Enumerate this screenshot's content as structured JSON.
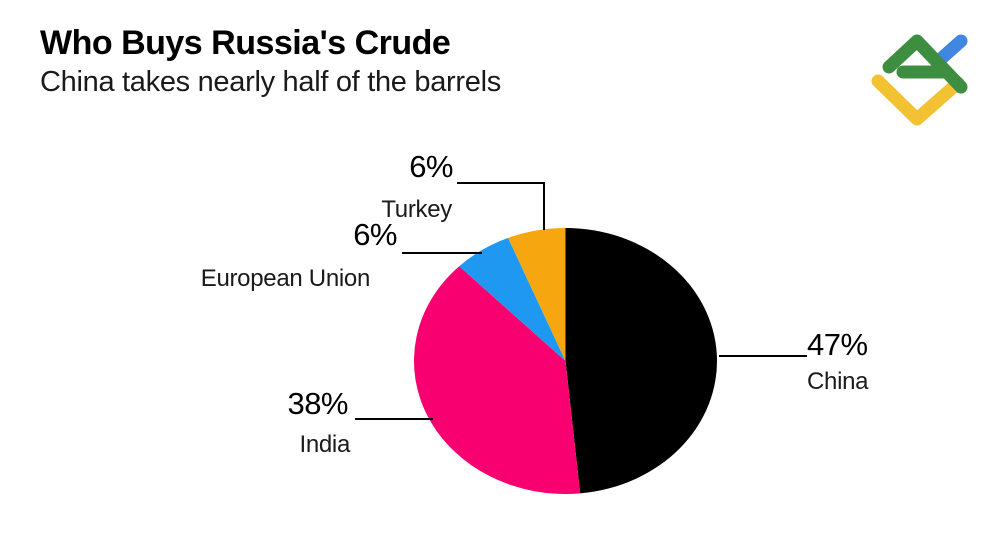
{
  "header": {
    "title": "Who Buys Russia's Crude",
    "subtitle": "China takes nearly half of the barrels"
  },
  "logo": {
    "name": "litefinance-logo",
    "colors": {
      "green": "#3E8E41",
      "blue": "#4187E2",
      "yellow": "#F2C233"
    }
  },
  "chart_data": {
    "type": "pie",
    "title": "Who Buys Russia's Crude",
    "subtitle": "China takes nearly half of the barrels",
    "categories": [
      "China",
      "India",
      "European Union",
      "Turkey"
    ],
    "values": [
      47,
      38,
      6,
      6
    ],
    "unit": "percent",
    "colors": [
      "#000000",
      "#F90070",
      "#1F98F2",
      "#F6A70F"
    ],
    "data_labels": [
      "47%",
      "38%",
      "6%",
      "6%"
    ],
    "start_angle_deg": 0,
    "direction": "clockwise",
    "legend": "none",
    "label_style": "direct labels with black leader lines"
  },
  "callouts": {
    "china": {
      "pct": "47%",
      "name": "China"
    },
    "india": {
      "pct": "38%",
      "name": "India"
    },
    "eu": {
      "pct": "6%",
      "name": "European Union"
    },
    "turkey": {
      "pct": "6%",
      "name": "Turkey"
    }
  },
  "colors": {
    "background": "#FFFFFF",
    "text": "#000000",
    "leader_line": "#000000"
  }
}
